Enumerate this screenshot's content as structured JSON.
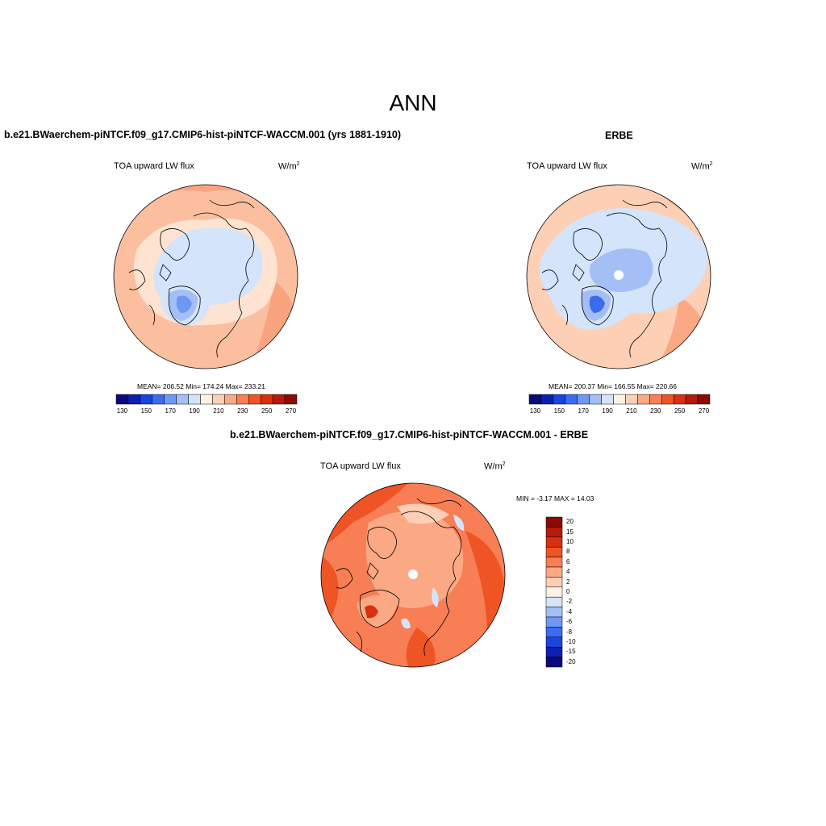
{
  "figure_title": "ANN",
  "panels": [
    {
      "title": "b.e21.BWaerchem-piNTCF.f09_g17.CMIP6-hist-piNTCF-WACCM.001 (yrs 1881-1910)",
      "variable": "TOA upward LW flux",
      "units": "W/m",
      "units_exp": "2",
      "stats": "MEAN= 206.52  Min= 174.24  Max= 233.21"
    },
    {
      "title": "ERBE",
      "variable": "TOA upward LW flux",
      "units": "W/m",
      "units_exp": "2",
      "stats": "MEAN= 200.37  Min= 166.55  Max= 220.66"
    },
    {
      "title": "b.e21.BWaerchem-piNTCF.f09_g17.CMIP6-hist-piNTCF-WACCM.001 - ERBE",
      "variable": "TOA upward LW flux",
      "units": "W/m",
      "units_exp": "2",
      "stats": "MIN =  -3.17 MAX =  14.03"
    }
  ],
  "abs_colorbar": {
    "colors": [
      "#0a0a7a",
      "#0d1fb0",
      "#1a44e0",
      "#3a6cf0",
      "#6f98f5",
      "#a3bff5",
      "#d4e4fb",
      "#fff3e8",
      "#fdd0b5",
      "#fba985",
      "#f77e55",
      "#ef5424",
      "#d8300e",
      "#b51a0a",
      "#8a0b05"
    ],
    "labels": [
      "130",
      "150",
      "170",
      "190",
      "210",
      "230",
      "250",
      "270"
    ]
  },
  "diff_colorbar": {
    "colors": [
      "#8a0b05",
      "#b51a0a",
      "#d8300e",
      "#ef5424",
      "#f77e55",
      "#fba985",
      "#fdd0b5",
      "#fff3e8",
      "#d4e4fb",
      "#a3bff5",
      "#6f98f5",
      "#3a6cf0",
      "#1a44e0",
      "#0d1fb0",
      "#0a0a7a"
    ],
    "labels": [
      "20",
      "15",
      "10",
      "8",
      "6",
      "4",
      "2",
      "0",
      "-2",
      "-4",
      "-6",
      "-8",
      "-10",
      "-15",
      "-20"
    ]
  }
}
